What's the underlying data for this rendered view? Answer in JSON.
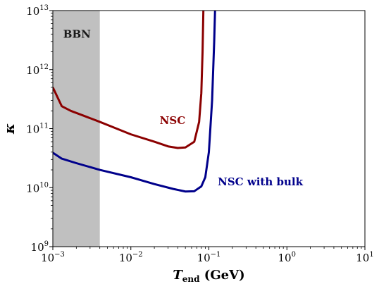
{
  "chart_data": {
    "type": "line",
    "xlabel": "T_end (GeV)",
    "xlabel_main": "T",
    "xlabel_sub": "end",
    "xlabel_unit": " (GeV)",
    "ylabel": "κ",
    "xscale": "log",
    "yscale": "log",
    "xlim": [
      0.001,
      10
    ],
    "ylim": [
      1000000000,
      10000000000000
    ],
    "grid": false,
    "x_ticks": [
      {
        "base": "10",
        "exp": "−3",
        "value": 0.001
      },
      {
        "base": "10",
        "exp": "−2",
        "value": 0.01
      },
      {
        "base": "10",
        "exp": "−1",
        "value": 0.1
      },
      {
        "base": "10",
        "exp": "0",
        "value": 1
      },
      {
        "base": "10",
        "exp": "1",
        "value": 10
      }
    ],
    "y_ticks": [
      {
        "base": "10",
        "exp": "9",
        "value": 1000000000
      },
      {
        "base": "10",
        "exp": "10",
        "value": 10000000000
      },
      {
        "base": "10",
        "exp": "11",
        "value": 100000000000
      },
      {
        "base": "10",
        "exp": "12",
        "value": 1000000000000
      },
      {
        "base": "10",
        "exp": "13",
        "value": 10000000000000
      }
    ],
    "shaded_region": {
      "label": "BBN",
      "x_range": [
        0.001,
        0.004
      ],
      "color": "#c0c0c0"
    },
    "series": [
      {
        "name": "NSC",
        "color": "#8b0000",
        "label_at": [
          0.05,
          120000000000
        ],
        "points": [
          [
            0.001,
            500000000000
          ],
          [
            0.0013,
            240000000000
          ],
          [
            0.0017,
            200000000000
          ],
          [
            0.0025,
            165000000000
          ],
          [
            0.004,
            130000000000
          ],
          [
            0.006,
            105000000000
          ],
          [
            0.01,
            80000000000
          ],
          [
            0.02,
            60000000000
          ],
          [
            0.03,
            50000000000
          ],
          [
            0.04,
            47000000000
          ],
          [
            0.05,
            48000000000
          ],
          [
            0.065,
            60000000000
          ],
          [
            0.075,
            130000000000
          ],
          [
            0.08,
            400000000000
          ],
          [
            0.083,
            2000000000000
          ],
          [
            0.085,
            10000000000000
          ]
        ]
      },
      {
        "name": "NSC with bulk",
        "color": "#00008b",
        "label_at": [
          0.13,
          11000000000
        ],
        "points": [
          [
            0.001,
            39000000000
          ],
          [
            0.0013,
            31000000000
          ],
          [
            0.002,
            26000000000
          ],
          [
            0.004,
            20000000000
          ],
          [
            0.01,
            15000000000
          ],
          [
            0.02,
            11500000000
          ],
          [
            0.035,
            9500000000
          ],
          [
            0.05,
            8600000000
          ],
          [
            0.065,
            8700000000
          ],
          [
            0.08,
            10500000000
          ],
          [
            0.09,
            15000000000
          ],
          [
            0.1,
            40000000000
          ],
          [
            0.11,
            300000000000
          ],
          [
            0.117,
            3000000000000
          ],
          [
            0.12,
            10000000000000
          ]
        ]
      }
    ]
  }
}
